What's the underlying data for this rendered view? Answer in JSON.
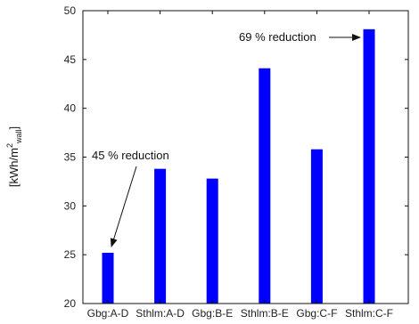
{
  "chart_data": {
    "type": "bar",
    "categories": [
      "Gbg:A-D",
      "Sthlm:A-D",
      "Gbg:B-E",
      "Sthlm:B-E",
      "Gbg:C-F",
      "Sthlm:C-F"
    ],
    "values": [
      25.2,
      33.8,
      32.8,
      44.1,
      35.8,
      48.1
    ],
    "title": "",
    "xlabel": "",
    "ylabel": {
      "base": "[kWh/m",
      "sup": "2",
      "sub": "wall",
      "end": "]"
    },
    "ylim": [
      20,
      50
    ],
    "yticks": [
      "20",
      "25",
      "30",
      "35",
      "40",
      "45",
      "50"
    ],
    "grid": false,
    "bar_color": "#0000ff",
    "annotations": [
      {
        "text": "45 % reduction",
        "category_index": 0
      },
      {
        "text": "69 % reduction",
        "category_index": 5
      }
    ]
  }
}
